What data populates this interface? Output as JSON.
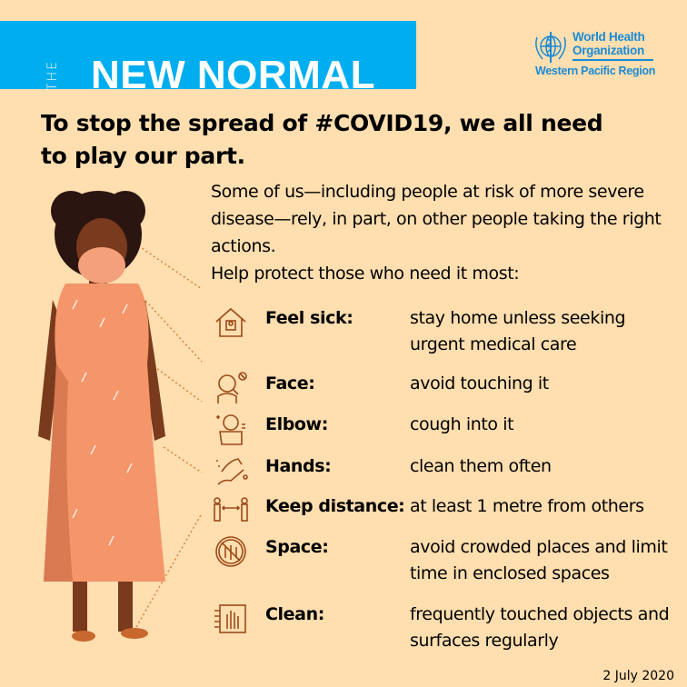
{
  "banner": {
    "the": "THE",
    "title": "NEW NORMAL",
    "color": "#00AEEF"
  },
  "logo": {
    "line1": "World Health",
    "line2": "Organization",
    "line3": "Western Pacific Region",
    "color": "#1A8BD4"
  },
  "headline": "To stop the spread of #COVID19, we all need to play our part.",
  "intro": "Some of us—including people at risk of more severe disease—rely, in part, on other people taking the right actions.",
  "help": "Help protect those who need it most:",
  "actions": [
    {
      "icon": "house-person-icon",
      "label": "Feel sick:",
      "text": "stay home unless seeking urgent medical care"
    },
    {
      "icon": "no-face-touch-icon",
      "label": "Face:",
      "text": "avoid touching it"
    },
    {
      "icon": "cough-elbow-icon",
      "label": "Elbow:",
      "text": "cough into it"
    },
    {
      "icon": "hand-wash-icon",
      "label": "Hands:",
      "text": "clean them often"
    },
    {
      "icon": "distance-icon",
      "label": "Keep distance:",
      "text": "at least 1 metre from others"
    },
    {
      "icon": "no-crowd-icon",
      "label": "Space:",
      "text": "avoid crowded places and limit time in enclosed spaces"
    },
    {
      "icon": "clean-surface-icon",
      "label": "Clean:",
      "text": "frequently touched objects and surfaces regularly"
    }
  ],
  "date": "2 July 2020",
  "colors": {
    "background": "#FFDEAF",
    "icon": "#9C4A1A",
    "dress": "#F4956A",
    "skin": "#7A3A1E"
  }
}
